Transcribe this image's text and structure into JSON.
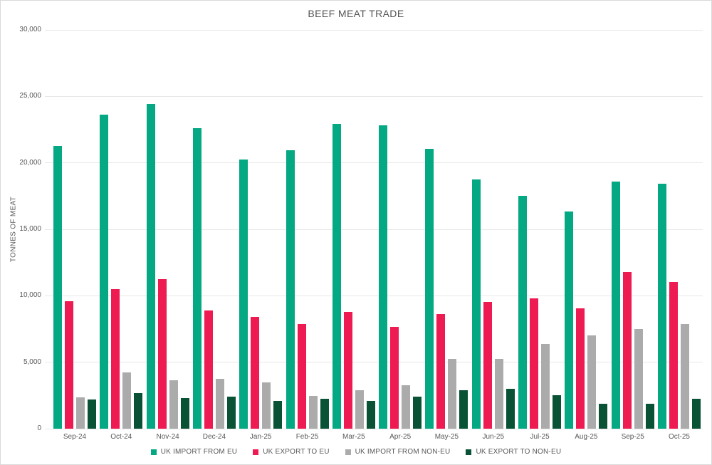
{
  "page": {
    "title": "BEEF MEAT TRADE"
  },
  "chart_data": {
    "type": "bar",
    "title": "BEEF MEAT TRADE",
    "xlabel": "",
    "ylabel": "TONNES OF MEAT",
    "ylim": [
      0,
      30000
    ],
    "ytick_step": 5000,
    "ytick_labels": [
      "0",
      "5,000",
      "10,000",
      "15,000",
      "20,000",
      "25,000",
      "30,000"
    ],
    "grid": true,
    "legend_position": "bottom",
    "categories": [
      "Sep-24",
      "Oct-24",
      "Nov-24",
      "Dec-24",
      "Jan-25",
      "Feb-25",
      "Mar-25",
      "Apr-25",
      "May-25",
      "Jun-25",
      "Jul-25",
      "Aug-25",
      "Sep-25",
      "Oct-25"
    ],
    "series": [
      {
        "name": "UK IMPORT FROM EU",
        "color": "#04A882",
        "values": [
          21250,
          23650,
          24450,
          22600,
          20250,
          20950,
          22950,
          22800,
          21050,
          18750,
          17500,
          16350,
          18600,
          18450
        ]
      },
      {
        "name": "UK EXPORT TO EU",
        "color": "#EE1A52",
        "values": [
          9600,
          10500,
          11250,
          8900,
          8400,
          7900,
          8800,
          7650,
          8600,
          9550,
          9800,
          9050,
          11800,
          11050
        ]
      },
      {
        "name": "UK IMPORT FROM NON-EU",
        "color": "#ABABAB",
        "values": [
          2350,
          4250,
          3650,
          3750,
          3500,
          2450,
          2900,
          3250,
          5250,
          5250,
          6350,
          7000,
          7500,
          7900
        ]
      },
      {
        "name": "UK EXPORT TO NON-EU",
        "color": "#0A5236",
        "values": [
          2200,
          2700,
          2300,
          2400,
          2100,
          2250,
          2100,
          2400,
          2900,
          3000,
          2500,
          1900,
          1850,
          2250
        ]
      }
    ]
  }
}
